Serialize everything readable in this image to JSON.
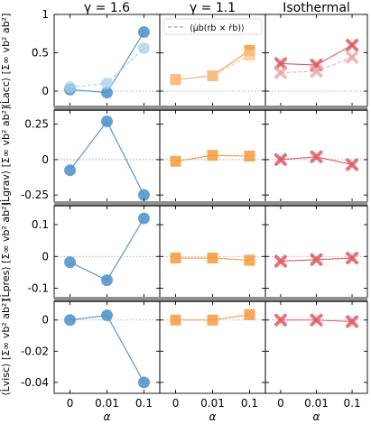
{
  "columns": [
    {
      "title": "γ = 1.6",
      "color": "#4a90c8",
      "light": "#a9cde8",
      "marker": "circle"
    },
    {
      "title": "γ = 1.1",
      "color": "#f59a3a",
      "light": "#f9c48c",
      "marker": "square"
    },
    {
      "title": "Isothermal",
      "color": "#df5a64",
      "light": "#eba4aa",
      "marker": "x"
    }
  ],
  "x_categories": [
    "0",
    "0.01",
    "0.1"
  ],
  "xlabel": "α",
  "legend_label": "⟨μ̇b(rb × ṙb)⟩",
  "chart_data": [
    {
      "type": "line",
      "row": "acc",
      "ylabel": "⟨L̇acc⟩ [Σ∞ vb² ab²]",
      "yticks": [
        0,
        0.5,
        1
      ],
      "ylim": [
        -0.2,
        1.0
      ],
      "series": [
        {
          "column": 0,
          "values": [
            0.02,
            -0.02,
            0.77
          ]
        },
        {
          "column": 0,
          "dashed": true,
          "values": [
            0.05,
            0.1,
            0.56
          ]
        },
        {
          "column": 1,
          "values": [
            0.15,
            0.2,
            0.53
          ]
        },
        {
          "column": 1,
          "dashed": true,
          "values": [
            0.15,
            0.2,
            0.47
          ]
        },
        {
          "column": 2,
          "values": [
            0.36,
            0.34,
            0.6
          ]
        },
        {
          "column": 2,
          "dashed": true,
          "values": [
            0.24,
            0.26,
            0.44
          ]
        }
      ]
    },
    {
      "type": "line",
      "row": "grav",
      "ylabel": "⟨L̇grav⟩ [Σ∞ vb² ab²]",
      "yticks": [
        -0.25,
        0.0,
        0.25
      ],
      "ylim": [
        -0.3,
        0.35
      ],
      "series": [
        {
          "column": 0,
          "values": [
            -0.075,
            0.27,
            -0.25
          ]
        },
        {
          "column": 1,
          "values": [
            -0.012,
            0.03,
            0.025
          ]
        },
        {
          "column": 2,
          "values": [
            0.0,
            0.02,
            -0.035
          ]
        }
      ]
    },
    {
      "type": "line",
      "row": "pres",
      "ylabel": "⟨L̇pres⟩ [Σ∞ vb² ab²]",
      "yticks": [
        -0.1,
        0.0,
        0.1
      ],
      "ylim": [
        -0.13,
        0.16
      ],
      "series": [
        {
          "column": 0,
          "values": [
            -0.018,
            -0.075,
            0.12
          ]
        },
        {
          "column": 1,
          "values": [
            -0.005,
            -0.005,
            -0.012
          ]
        },
        {
          "column": 2,
          "values": [
            -0.015,
            -0.01,
            -0.005
          ]
        }
      ]
    },
    {
      "type": "line",
      "row": "visc",
      "ylabel": "⟨L̇visc⟩ [Σ∞ vb² ab²]",
      "yticks": [
        -0.04,
        -0.02,
        0.0
      ],
      "ylim": [
        -0.047,
        0.012
      ],
      "series": [
        {
          "column": 0,
          "values": [
            0.0,
            0.003,
            -0.04
          ]
        },
        {
          "column": 1,
          "values": [
            0.0,
            0.0,
            0.0035
          ]
        },
        {
          "column": 2,
          "values": [
            0.0,
            0.0,
            -0.001
          ]
        }
      ]
    }
  ]
}
